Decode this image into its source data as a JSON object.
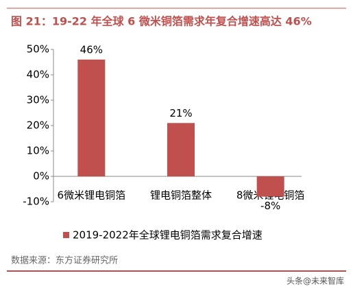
{
  "chart_data": {
    "type": "bar",
    "title": "图 21：19-22 年全球 6 微米铜箔需求年复合增速高达 46%",
    "categories": [
      "6微米锂电铜箔",
      "锂电铜箔整体",
      "8微米锂电铜箔"
    ],
    "series": [
      {
        "name": "2019-2022年全球锂电铜箔需求复合增速",
        "color": "#c0504d",
        "values": [
          46,
          21,
          -8
        ],
        "value_labels": [
          "46%",
          "21%",
          "-8%"
        ]
      }
    ],
    "ylim": [
      -10,
      50
    ],
    "yticks": [
      {
        "value": -10,
        "label": "-10%"
      },
      {
        "value": 0,
        "label": "0%"
      },
      {
        "value": 10,
        "label": "10%"
      },
      {
        "value": 20,
        "label": "20%"
      },
      {
        "value": 30,
        "label": "30%"
      },
      {
        "value": 40,
        "label": "40%"
      },
      {
        "value": 50,
        "label": "50%"
      }
    ],
    "grid": false,
    "legend": "bottom",
    "source": "数据来源：东方证券研究所",
    "watermark": "头条@未来智库"
  }
}
